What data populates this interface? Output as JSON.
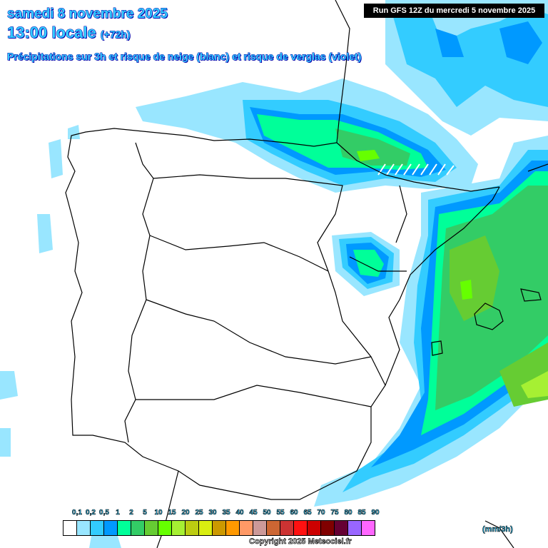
{
  "header": {
    "date": "samedi 8 novembre 2025",
    "time": "13:00 locale",
    "lead": "(+72h)",
    "subtitle": "Précipitations sur 3h et risque de neige (blanc) et risque de verglas (violet)",
    "run": "Run GFS 12Z du mercredi 5 novembre 2025"
  },
  "legend": {
    "unit": "(mm/3h)",
    "labels": [
      "0,1",
      "0,2",
      "0,5",
      "1",
      "2",
      "5",
      "10",
      "15",
      "20",
      "25",
      "30",
      "35",
      "40",
      "45",
      "50",
      "55",
      "60",
      "65",
      "70",
      "75",
      "80",
      "85",
      "90"
    ],
    "colors": [
      "#ffffff",
      "#99e6ff",
      "#33ccff",
      "#0099ff",
      "#00ff99",
      "#33cc66",
      "#66cc33",
      "#66ff00",
      "#a6f033",
      "#bccc11",
      "#d9ee11",
      "#cc9900",
      "#ff9900",
      "#ff9966",
      "#cc9999",
      "#cc6633",
      "#cc3333",
      "#ff1111",
      "#cc0000",
      "#800000",
      "#660033",
      "#9966ff",
      "#ff66ff"
    ]
  },
  "copyright": "Copyright 2025 Meteociel.fr"
}
